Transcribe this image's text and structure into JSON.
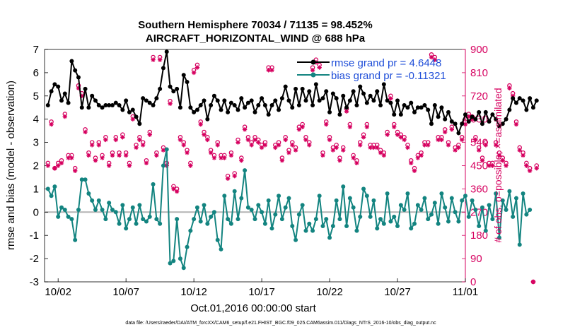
{
  "chart_data": {
    "type": "line",
    "title": [
      "Southern Hemisphere 70034 / 71135 = 98.452%",
      "AIRCRAFT_HORIZONTAL_WIND @ 688 hPa"
    ],
    "xlabel": "Oct.01,2016 00:00:00 start",
    "ylabel": "rmse and bias (model - observation)",
    "ylabel_right": "# of obs: o=possible; ×=assimilated",
    "xlim": [
      1,
      32
    ],
    "ylim": [
      -3,
      7
    ],
    "ylim_right": [
      0,
      900
    ],
    "x_ticks": [
      2,
      7,
      12,
      17,
      22,
      27,
      32
    ],
    "x_tick_labels": [
      "10/02",
      "10/07",
      "10/12",
      "10/17",
      "10/22",
      "10/27",
      "11/01"
    ],
    "y_ticks": [
      -3,
      -2,
      -1,
      0,
      1,
      2,
      3,
      4,
      5,
      6,
      7
    ],
    "y_tick_labels": [
      "-3",
      "-2",
      "-1",
      "0",
      "1",
      "2",
      "3",
      "4",
      "5",
      "6",
      "7"
    ],
    "y2_ticks": [
      0,
      90,
      180,
      270,
      360,
      450,
      540,
      630,
      720,
      810,
      900
    ],
    "y2_tick_labels": [
      "0",
      "90",
      "180",
      "270",
      "360",
      "450",
      "540",
      "630",
      "720",
      "810",
      "900"
    ],
    "legend": [
      "rmse grand pr = 4.6448",
      "bias grand pr = -0.11321"
    ],
    "legend_position": "top-right",
    "footer": "data file: /Users/raeder/DAI/ATM_forcXX/CAM6_setup/f.e21.FHIST_BGC.f09_025.CAM6assim.011/Diags_NTrS_2016-10/obs_diag_output.nc",
    "colors": {
      "rmse": "#000000",
      "bias": "#138480",
      "obs": "#d6005f",
      "zero_line": "#b3b3b3",
      "legend_text": "#1f4ed8"
    },
    "series": [
      {
        "name": "rmse",
        "axis": "left",
        "x_start": 1.25,
        "dx": 0.25,
        "values": [
          4.6,
          5.2,
          5.5,
          5.4,
          4.8,
          5.1,
          4.7,
          6.5,
          6.1,
          5.8,
          4.5,
          5.3,
          4.5,
          5.0,
          4.8,
          4.6,
          4.5,
          4.6,
          4.6,
          4.6,
          4.7,
          4.6,
          4.4,
          4.8,
          4.3,
          4.4,
          4.1,
          3.8,
          4.9,
          4.8,
          4.7,
          4.6,
          4.9,
          5.3,
          6.2,
          6.9,
          5.4,
          5.2,
          5.3,
          4.5,
          5.9,
          5.6,
          4.5,
          4.3,
          4.4,
          4.6,
          4.8,
          4.0,
          4.6,
          5.0,
          4.8,
          4.4,
          4.8,
          4.3,
          4.7,
          4.6,
          4.4,
          4.9,
          4.5,
          4.7,
          4.8,
          4.3,
          4.6,
          4.9,
          4.6,
          4.2,
          4.6,
          4.8,
          4.4,
          4.9,
          5.4,
          4.8,
          4.5,
          5.3,
          4.6,
          5.3,
          4.8,
          5.2,
          4.6,
          5.5,
          4.8,
          4.9,
          5.2,
          4.3,
          5.1,
          4.9,
          4.2,
          5.0,
          4.5,
          4.8,
          5.2,
          4.6,
          5.4,
          5.1,
          4.7,
          5.0,
          4.8,
          5.2,
          4.6,
          5.5,
          4.8,
          4.7,
          4.2,
          4.8,
          4.2,
          4.6,
          4.5,
          4.7,
          4.3,
          4.5,
          4.5,
          4.6,
          4.4,
          3.8,
          4.6,
          4.1,
          4.5,
          4.0,
          4.3,
          3.9,
          3.8,
          3.4,
          3.8,
          4.2,
          3.9,
          4.1,
          4.0,
          4.3,
          3.8,
          4.3,
          3.9,
          4.2,
          4.0,
          3.7,
          3.8,
          4.0,
          4.4,
          4.9,
          4.7,
          4.9,
          4.8,
          4.4,
          4.9,
          4.5,
          4.8
        ]
      },
      {
        "name": "bias",
        "axis": "left",
        "x_start": 1.25,
        "dx": 0.25,
        "values": [
          1.0,
          0.7,
          1.1,
          -0.2,
          0.2,
          0.1,
          -0.2,
          -0.3,
          -1.2,
          0.1,
          1.4,
          1.4,
          0.8,
          0.5,
          0.1,
          0.5,
          0.1,
          -0.3,
          0.4,
          0.1,
          0.0,
          -0.5,
          0.3,
          -0.7,
          -0.3,
          0.2,
          -0.5,
          0.3,
          -0.3,
          -0.4,
          -0.2,
          1.2,
          -0.3,
          -0.5,
          2.0,
          2.7,
          -2.2,
          -2.1,
          -0.3,
          -2.0,
          -2.4,
          -1.5,
          -0.8,
          -0.3,
          0.2,
          -0.4,
          0.3,
          -0.5,
          -0.2,
          0.0,
          -1.2,
          -1.6,
          0.7,
          -0.3,
          -0.5,
          0.9,
          -0.3,
          0.6,
          1.8,
          0.2,
          0.1,
          -0.3,
          0.3,
          0.0,
          -0.5,
          0.5,
          -0.7,
          -0.1,
          0.7,
          -0.3,
          0.2,
          0.6,
          -0.6,
          -1.2,
          -0.1,
          0.3,
          -0.8,
          -0.5,
          -0.8,
          -0.3,
          0.7,
          -0.6,
          -0.3,
          -1.1,
          -0.6,
          0.5,
          -0.3,
          1.1,
          -0.6,
          0.6,
          0.2,
          -0.8,
          -0.2,
          1.0,
          0.7,
          -0.2,
          0.5,
          -0.7,
          -0.3,
          -0.5,
          0.8,
          -0.4,
          -0.2,
          -0.6,
          0.3,
          0.1,
          0.8,
          -0.7,
          -0.5,
          0.3,
          0.1,
          0.6,
          -0.3,
          -0.1,
          0.4,
          -0.5,
          0.8,
          0.2,
          -0.4,
          0.6,
          0.0,
          -0.4,
          0.5,
          0.7,
          -0.2,
          0.5,
          0.1,
          -0.6,
          0.2,
          -0.8,
          0.3,
          -0.3,
          0.8,
          -1.1,
          0.5,
          0.1,
          0.9,
          -0.2,
          0.6,
          -1.4,
          0.8,
          -0.1,
          0.1
        ]
      },
      {
        "name": "obs possible",
        "axis": "right",
        "marker": "o",
        "x_start": 1.25,
        "dx": 0.25,
        "values": [
          460,
          620,
          440,
          460,
          470,
          650,
          490,
          490,
          440,
          760,
          730,
          590,
          500,
          540,
          480,
          540,
          490,
          560,
          460,
          500,
          560,
          500,
          570,
          500,
          460,
          640,
          530,
          560,
          540,
          470,
          580,
          870,
          500,
          870,
          520,
          460,
          700,
          370,
          360,
          560,
          540,
          510,
          460,
          820,
          840,
          620,
          580,
          560,
          510,
          490,
          540,
          490,
          490,
          410,
          500,
          420,
          550,
          480,
          600,
          560,
          540,
          560,
          550,
          530,
          540,
          830,
          830,
          530,
          540,
          480,
          560,
          510,
          540,
          520,
          600,
          610,
          560,
          540,
          830,
          860,
          840,
          500,
          620,
          560,
          520,
          530,
          480,
          520,
          670,
          610,
          490,
          470,
          540,
          570,
          610,
          530,
          530,
          530,
          510,
          500,
          580,
          720,
          610,
          580,
          570,
          560,
          530,
          470,
          440,
          490,
          500,
          540,
          540,
          880,
          870,
          560,
          560,
          590,
          540,
          600,
          520,
          530,
          560,
          620,
          650,
          640,
          560,
          520,
          480,
          540,
          460,
          460,
          540,
          500,
          480,
          460,
          760,
          730,
          620,
          520,
          500,
          460,
          440,
          0,
          450
        ]
      },
      {
        "name": "obs assimilated",
        "axis": "right",
        "marker": "x",
        "x_start": 1.25,
        "dx": 0.25,
        "values": [
          450,
          610,
          440,
          450,
          460,
          640,
          480,
          480,
          430,
          750,
          720,
          580,
          490,
          530,
          470,
          530,
          480,
          550,
          450,
          490,
          550,
          490,
          560,
          490,
          450,
          630,
          520,
          550,
          530,
          460,
          570,
          860,
          490,
          860,
          510,
          450,
          690,
          360,
          350,
          550,
          530,
          500,
          450,
          810,
          830,
          610,
          570,
          550,
          500,
          480,
          530,
          480,
          480,
          400,
          490,
          410,
          540,
          470,
          590,
          550,
          530,
          550,
          540,
          520,
          530,
          820,
          820,
          520,
          530,
          470,
          550,
          500,
          530,
          510,
          590,
          600,
          550,
          530,
          820,
          850,
          830,
          490,
          610,
          550,
          510,
          520,
          470,
          510,
          660,
          600,
          480,
          460,
          530,
          560,
          600,
          520,
          520,
          520,
          500,
          490,
          570,
          710,
          600,
          570,
          560,
          550,
          520,
          460,
          430,
          480,
          490,
          530,
          530,
          870,
          860,
          550,
          550,
          580,
          530,
          590,
          510,
          520,
          550,
          610,
          640,
          630,
          550,
          510,
          470,
          530,
          450,
          450,
          530,
          490,
          470,
          450,
          750,
          720,
          610,
          510,
          490,
          450,
          430,
          0,
          440
        ]
      }
    ]
  }
}
